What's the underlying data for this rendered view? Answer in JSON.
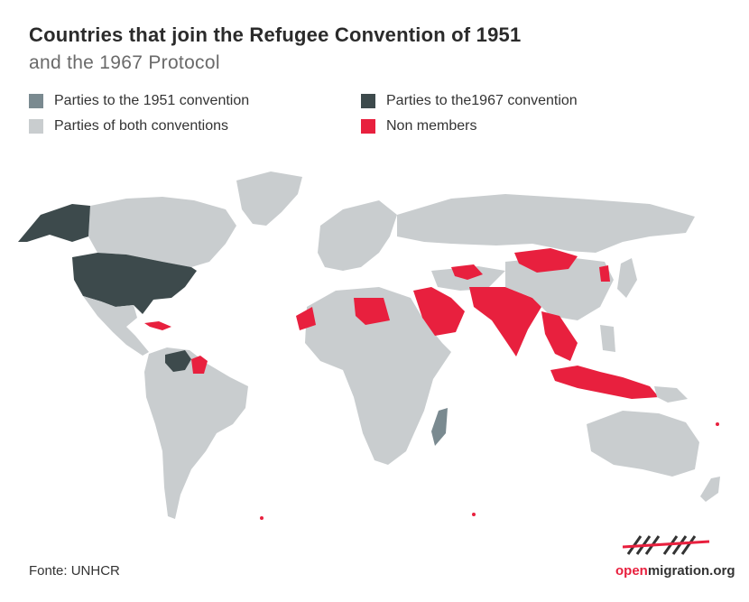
{
  "title": "Countries that join the Refugee Convention of 1951",
  "subtitle": "and the 1967 Protocol",
  "legend": [
    {
      "label": "Parties to the 1951 convention",
      "color": "#7a8a90"
    },
    {
      "label": "Parties to the1967 convention",
      "color": "#3d4a4c"
    },
    {
      "label": "Parties of both conventions",
      "color": "#c9cdcf"
    },
    {
      "label": "Non members",
      "color": "#e8203e"
    }
  ],
  "source": "Fonte: UNHCR",
  "logo": {
    "accent": "open",
    "rest": "migration.org"
  },
  "colors": {
    "both": "#c9cdcf",
    "p1951": "#7a8a90",
    "p1967": "#3d4a4c",
    "non": "#e8203e",
    "border": "#ffffff"
  }
}
